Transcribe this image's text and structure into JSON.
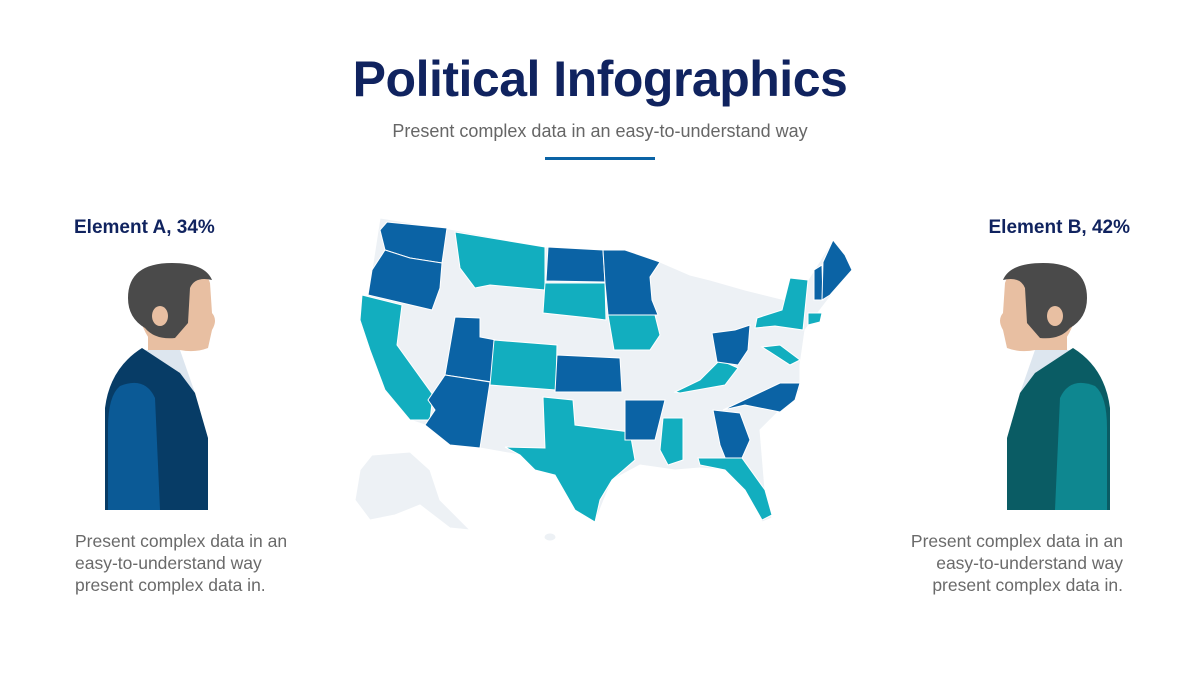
{
  "header": {
    "title": "Political Infographics",
    "subtitle": "Present complex data in an easy-to-understand way"
  },
  "element_a": {
    "label": "Element A, 34%",
    "percent": 34,
    "description": [
      "Present complex data in an",
      "easy-to-understand way",
      "present complex data in."
    ],
    "color": "#0b4f86"
  },
  "element_b": {
    "label": "Element B, 42%",
    "percent": 42,
    "description": [
      "Present complex data in an",
      "easy-to-understand way",
      "present complex data in."
    ],
    "color": "#0b7d86"
  },
  "map": {
    "colors": {
      "element_a": "#0b63a5",
      "element_b": "#12aebf",
      "neutral": "#edf1f5"
    }
  }
}
